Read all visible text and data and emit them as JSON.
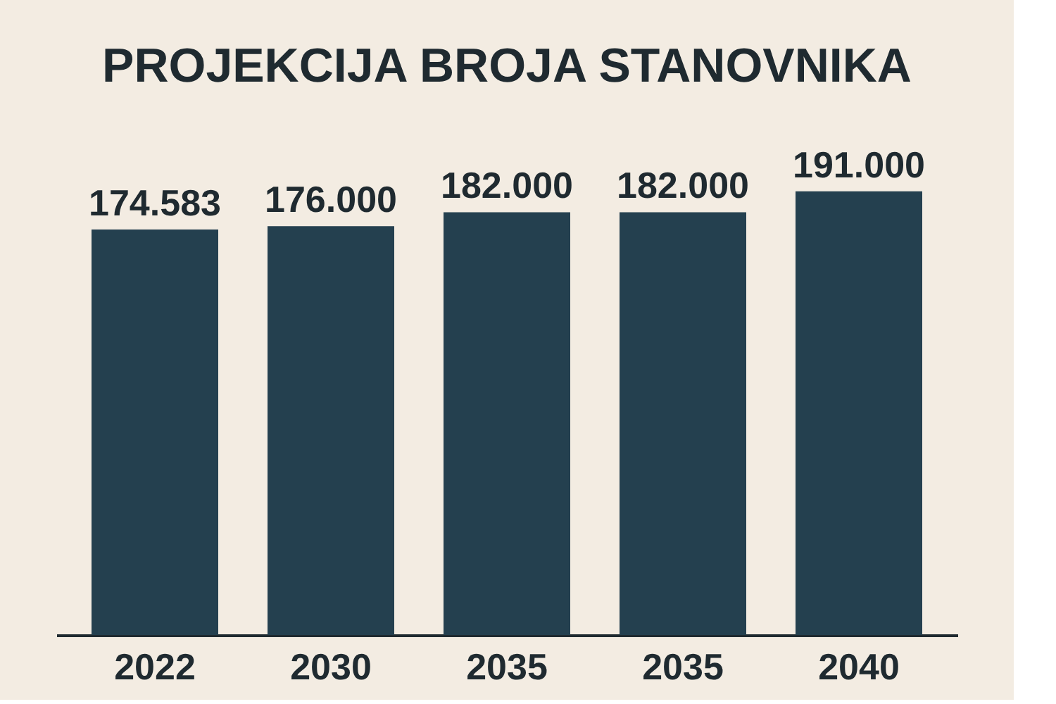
{
  "chart_data": {
    "type": "bar",
    "title": "PROJEKCIJA BROJA STANOVNIKA",
    "categories": [
      "2022",
      "2030",
      "2035",
      "2035",
      "2040"
    ],
    "values": [
      174583,
      176000,
      182000,
      182000,
      191000
    ],
    "value_labels": [
      "174.583",
      "176.000",
      "182.000",
      "182.000",
      "191.000"
    ],
    "color": "#24404f",
    "tick_labels": "x",
    "grid": false
  }
}
